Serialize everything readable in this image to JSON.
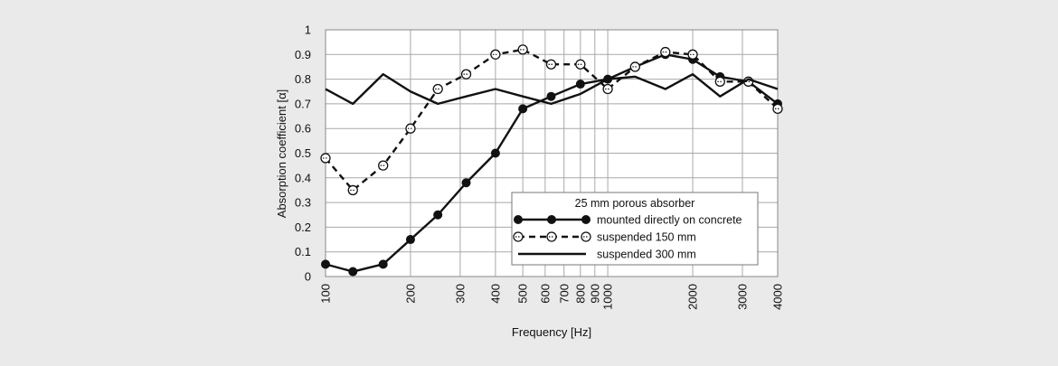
{
  "chart_data": {
    "type": "line",
    "xscale": "log",
    "xlim": [
      100,
      4000
    ],
    "ylim": [
      0,
      1
    ],
    "grid": true,
    "xlabel": "Frequency [Hz]",
    "ylabel": "Absorption coefficient [α]",
    "xticks": [
      100,
      200,
      300,
      400,
      500,
      600,
      700,
      800,
      900,
      1000,
      2000,
      3000,
      4000
    ],
    "xtick_labels": [
      "100",
      "200",
      "300",
      "400",
      "500",
      "600",
      "700",
      "800",
      "900",
      "1000",
      "2000",
      "3000",
      "4000"
    ],
    "yticks": [
      0,
      0.1,
      0.2,
      0.3,
      0.4,
      0.5,
      0.6,
      0.7,
      0.8,
      0.9,
      1
    ],
    "ytick_labels": [
      "0",
      "0.1",
      "0.2",
      "0.3",
      "0.4",
      "0.5",
      "0.6",
      "0.7",
      "0.8",
      "0.9",
      "1"
    ],
    "x": [
      100,
      125,
      160,
      200,
      250,
      315,
      400,
      500,
      630,
      800,
      1000,
      1250,
      1600,
      2000,
      2500,
      3150,
      4000
    ],
    "legend_title": "25 mm porous absorber",
    "legend_position": "lower-right",
    "series": [
      {
        "name": "mounted directly on concrete",
        "style": "solid-filled-markers",
        "values": [
          0.05,
          0.02,
          0.05,
          0.15,
          0.25,
          0.38,
          0.5,
          0.68,
          0.73,
          0.78,
          0.8,
          0.85,
          0.9,
          0.88,
          0.81,
          0.79,
          0.7
        ]
      },
      {
        "name": "suspended 150 mm",
        "style": "dashed-open-markers",
        "values": [
          0.48,
          0.35,
          0.45,
          0.6,
          0.76,
          0.82,
          0.9,
          0.92,
          0.86,
          0.86,
          0.76,
          0.85,
          0.91,
          0.9,
          0.79,
          0.79,
          0.68
        ]
      },
      {
        "name": "suspended 300 mm",
        "style": "solid-no-markers",
        "values": [
          0.76,
          0.7,
          0.82,
          0.75,
          0.7,
          0.73,
          0.76,
          0.73,
          0.7,
          0.74,
          0.8,
          0.81,
          0.76,
          0.82,
          0.73,
          0.8,
          0.76
        ]
      }
    ]
  }
}
